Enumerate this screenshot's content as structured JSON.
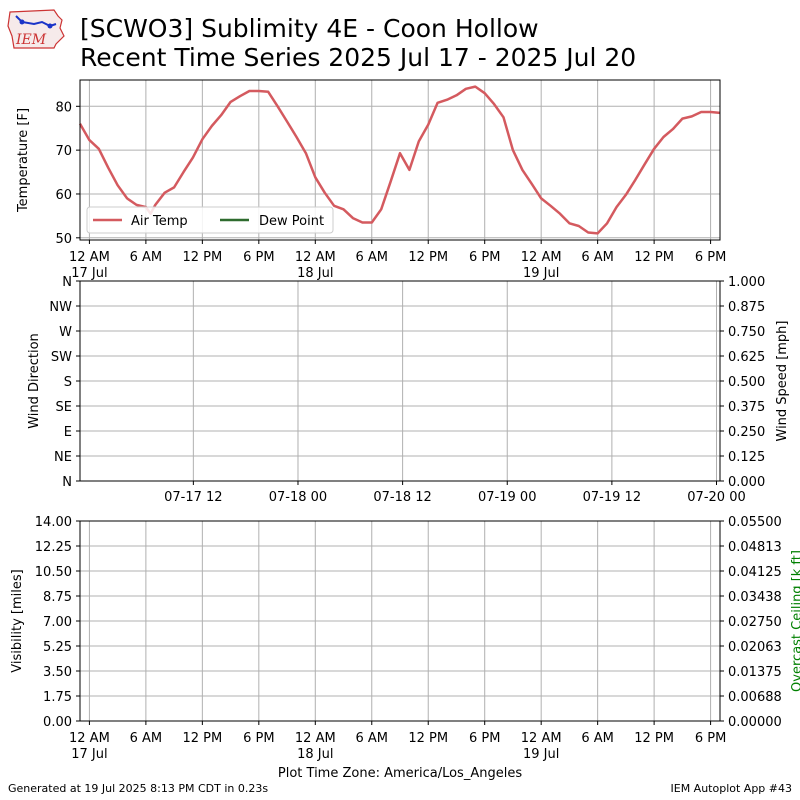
{
  "header": {
    "logo_text": "IEM",
    "title_line1": "[SCWO3] Sublimity 4E - Coon Hollow",
    "title_line2": "Recent Time Series 2025 Jul 17 - 2025 Jul 20"
  },
  "footer": {
    "generated": "Generated at 19 Jul 2025 8:13 PM CDT in 0.23s",
    "app": "IEM Autoplot App #43"
  },
  "colors": {
    "air_temp": "#d45a5f",
    "dew_point": "#2e6b2e",
    "ceiling_label": "#008000",
    "grid": "#b0b0b0"
  },
  "chart_data": [
    {
      "type": "line",
      "id": "temperature",
      "ylabel": "Temperature [F]",
      "ylim": [
        49.5,
        86
      ],
      "yticks": [
        50,
        60,
        70,
        80
      ],
      "x_ticks": [
        "12 AM\n17 Jul",
        "6 AM",
        "12 PM",
        "6 PM",
        "12 AM\n18 Jul",
        "6 AM",
        "12 PM",
        "6 PM",
        "12 AM\n19 Jul",
        "6 AM",
        "12 PM",
        "6 PM"
      ],
      "x_range_hours": [
        -1.0,
        67.0
      ],
      "grid": true,
      "legend": {
        "placement": "lower-left",
        "entries": [
          "Air Temp",
          "Dew Point"
        ]
      },
      "series": [
        {
          "name": "Air Temp",
          "x_hours": [
            -1.0,
            0.0,
            1.0,
            2.0,
            3.0,
            4.0,
            5.0,
            6.0,
            6.5,
            7.0,
            8.0,
            9.0,
            10.0,
            11.0,
            12.0,
            13.0,
            14.0,
            15.0,
            16.0,
            17.0,
            18.0,
            19.0,
            20.0,
            21.0,
            22.0,
            23.0,
            24.0,
            25.0,
            26.0,
            27.0,
            28.0,
            29.0,
            30.0,
            31.0,
            32.0,
            33.0,
            34.0,
            35.0,
            36.0,
            37.0,
            38.0,
            39.0,
            40.0,
            41.0,
            42.0,
            43.0,
            44.0,
            45.0,
            46.0,
            47.0,
            48.0,
            49.0,
            50.0,
            51.0,
            52.0,
            53.0,
            54.0,
            55.0,
            56.0,
            57.0,
            58.0,
            59.0,
            60.0,
            61.0,
            62.0,
            63.0,
            64.0,
            65.0,
            66.0,
            67.0
          ],
          "values": [
            76.0,
            72.3,
            70.3,
            66.0,
            62.0,
            59.0,
            57.5,
            57.0,
            55.5,
            57.5,
            60.3,
            61.5,
            65.0,
            68.3,
            72.5,
            75.5,
            78.0,
            81.0,
            82.3,
            83.5,
            83.5,
            83.3,
            80.0,
            76.5,
            73.0,
            69.3,
            63.8,
            60.3,
            57.3,
            56.5,
            54.5,
            53.5,
            53.5,
            56.5,
            62.8,
            69.3,
            65.5,
            72.0,
            75.8,
            80.8,
            81.5,
            82.5,
            84.0,
            84.5,
            83.0,
            80.5,
            77.5,
            70.0,
            65.5,
            62.3,
            59.0,
            57.3,
            55.5,
            53.3,
            52.7,
            51.2,
            51.0,
            53.3,
            57.0,
            59.8,
            63.2,
            66.8,
            70.3,
            73.0,
            74.8,
            77.2,
            77.7,
            78.7,
            78.7,
            78.5
          ]
        },
        {
          "name": "Dew Point",
          "x_hours": [],
          "values": []
        }
      ]
    },
    {
      "type": "scatter",
      "id": "wind",
      "ylabel": "Wind Direction",
      "ylabel_right": "Wind Speed [mph]",
      "yticks_left": [
        "N",
        "NE",
        "E",
        "SE",
        "S",
        "SW",
        "W",
        "NW",
        "N"
      ],
      "yticks_right": [
        "0.000",
        "0.125",
        "0.250",
        "0.375",
        "0.500",
        "0.625",
        "0.750",
        "0.875",
        "1.000"
      ],
      "ylim_right": [
        0,
        1
      ],
      "x_ticks": [
        "07-17 12",
        "07-18 00",
        "07-18 12",
        "07-19 00",
        "07-19 12",
        "07-20 00"
      ],
      "x_range_hours": [
        -1.0,
        72.4
      ],
      "grid": true,
      "series": []
    },
    {
      "type": "line",
      "id": "visibility",
      "ylabel": "Visibility [miles]",
      "ylabel_right": "Overcast Ceiling [k ft]",
      "yticks_left": [
        "0.00",
        "1.75",
        "3.50",
        "5.25",
        "7.00",
        "8.75",
        "10.50",
        "12.25",
        "14.00"
      ],
      "yticks_right": [
        "0.00000",
        "0.00688",
        "0.01375",
        "0.02063",
        "0.02750",
        "0.03438",
        "0.04125",
        "0.04813",
        "0.05500"
      ],
      "ylim": [
        0,
        14
      ],
      "ylim_right": [
        0,
        0.055
      ],
      "x_ticks": [
        "12 AM\n17 Jul",
        "6 AM",
        "12 PM",
        "6 PM",
        "12 AM\n18 Jul",
        "6 AM",
        "12 PM",
        "6 PM",
        "12 AM\n19 Jul",
        "6 AM",
        "12 PM",
        "6 PM"
      ],
      "x_range_hours": [
        -1.0,
        67.0
      ],
      "xlabel": "Plot Time Zone: America/Los_Angeles",
      "grid": true,
      "series": []
    }
  ]
}
